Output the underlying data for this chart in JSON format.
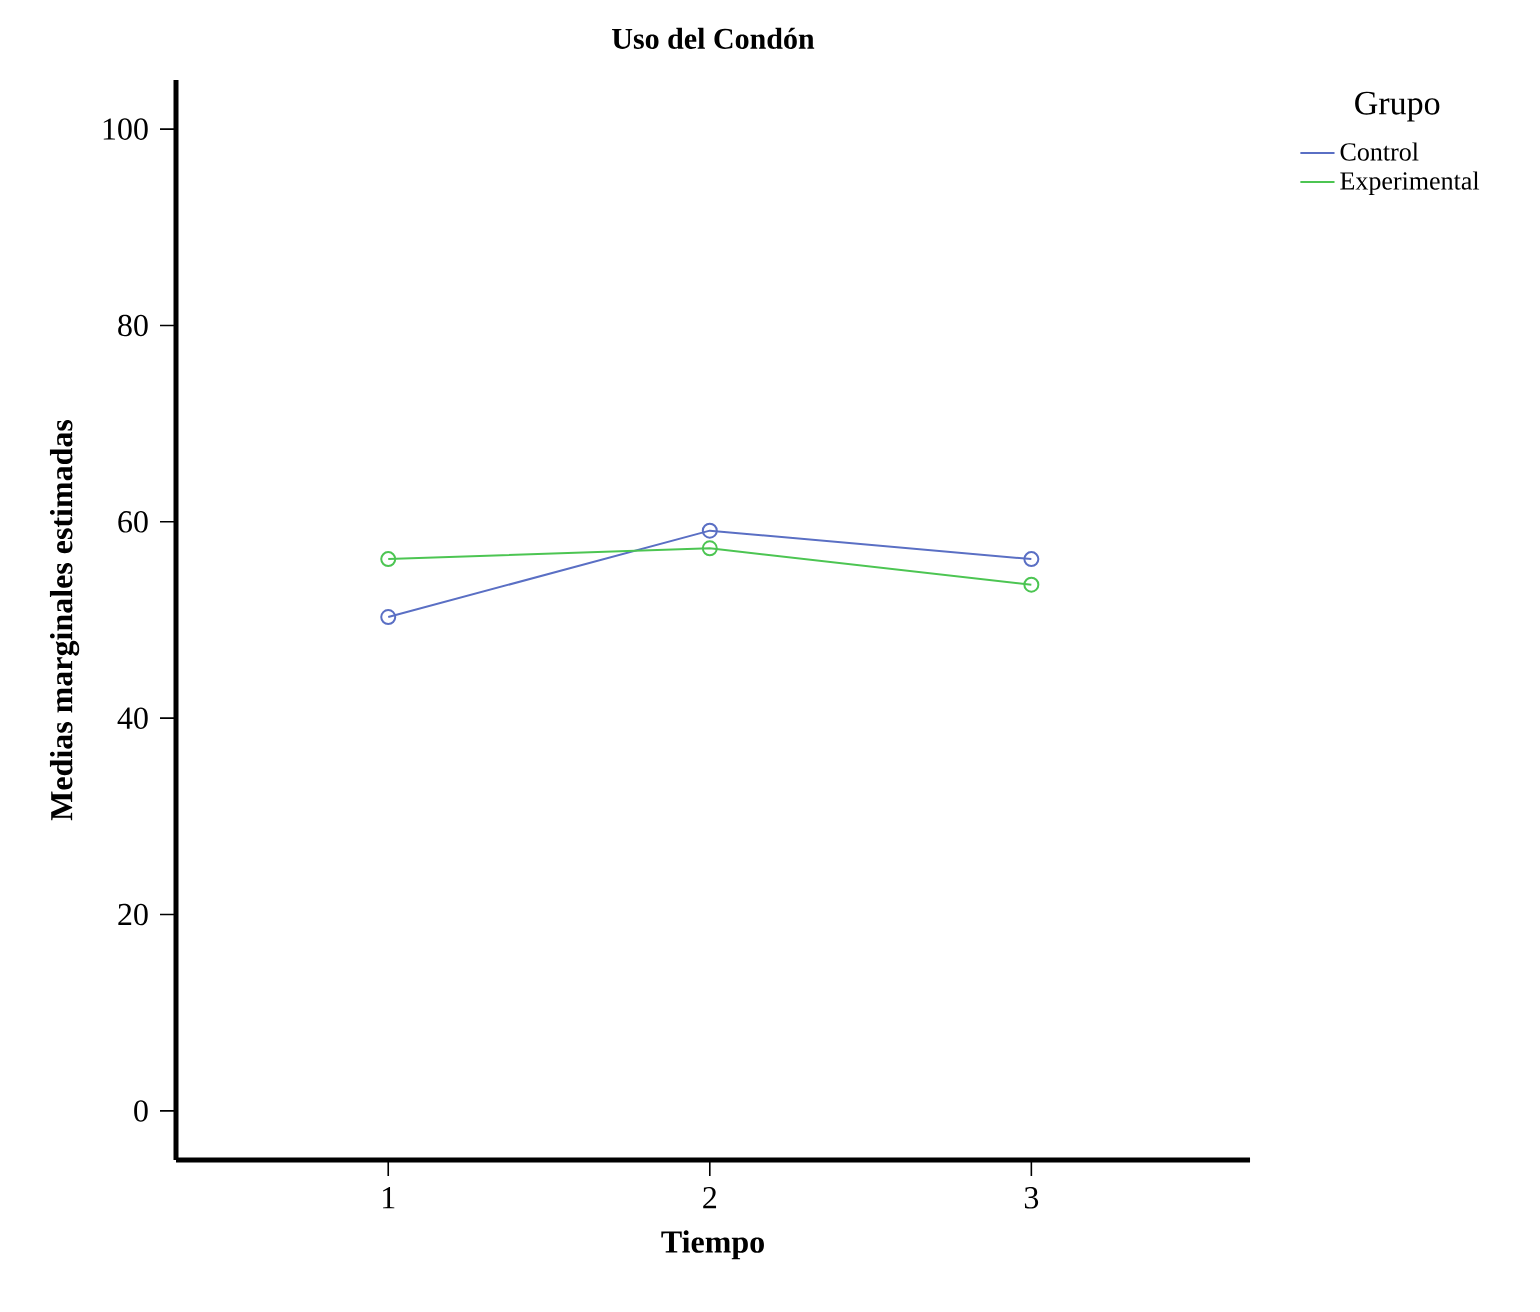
{
  "chart_data": {
    "type": "line",
    "title": "Uso del Condón",
    "xlabel": "Tiempo",
    "ylabel": "Medias marginales estimadas",
    "legend_title": "Grupo",
    "x": [
      1,
      2,
      3
    ],
    "xlim": [
      0.34,
      3.68
    ],
    "xticks": [
      1,
      2,
      3
    ],
    "ylim": [
      -5,
      105
    ],
    "yticks": [
      0,
      20,
      40,
      60,
      80,
      100
    ],
    "series": [
      {
        "name": "Control",
        "color": "#5a6fc4",
        "values": [
          50.3,
          59.1,
          56.2
        ]
      },
      {
        "name": "Experimental",
        "color": "#4cc552",
        "values": [
          56.2,
          57.3,
          53.6
        ]
      }
    ],
    "marker": "circle",
    "line_style": "solid",
    "legend": "top right",
    "grid": false
  }
}
